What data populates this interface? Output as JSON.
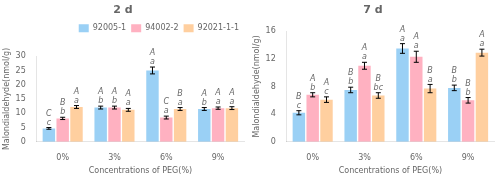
{
  "chart_data": [
    {
      "type": "bar",
      "title": "2 d",
      "xlabel": "Concentrations of PEG(%)",
      "ylabel": "Malondialdehyde(nmol/g)",
      "categories": [
        "0%",
        "3%",
        "6%",
        "9%"
      ],
      "series": [
        {
          "name": "92005-1",
          "values": [
            4.7,
            12.0,
            25.0,
            11.5
          ],
          "errors": [
            0.3,
            0.5,
            1.2,
            0.5
          ],
          "letters": [
            "C",
            "A",
            "A",
            "A"
          ],
          "letters_lower": [
            "c",
            "b",
            "a",
            "b"
          ]
        },
        {
          "name": "94002-2",
          "values": [
            8.2,
            12.0,
            8.5,
            11.8
          ],
          "errors": [
            0.4,
            0.5,
            0.5,
            0.4
          ],
          "letters": [
            "B",
            "A",
            "C",
            "A"
          ],
          "letters_lower": [
            "b",
            "b",
            "a",
            "a"
          ]
        },
        {
          "name": "92021-1-1",
          "values": [
            12.2,
            11.2,
            11.5,
            11.8
          ],
          "errors": [
            0.5,
            0.5,
            0.5,
            0.5
          ],
          "letters": [
            "A",
            "A",
            "B",
            "A"
          ],
          "letters_lower": [
            "a",
            "a",
            "a",
            "a"
          ]
        }
      ],
      "ylim": [
        0,
        30
      ],
      "yticks": [
        0,
        5,
        10,
        15,
        20,
        25,
        30
      ],
      "grid": false,
      "legend": "upper right"
    },
    {
      "type": "bar",
      "title": "7 d",
      "xlabel": "Concentrations of PEG(%)",
      "ylabel": "Malondialdehyde(nmol/g)",
      "categories": [
        "0%",
        "3%",
        "6%",
        "9%"
      ],
      "series": [
        {
          "name": "92005-1",
          "values": [
            4.2,
            7.5,
            13.5,
            7.8
          ],
          "errors": [
            0.3,
            0.4,
            0.7,
            0.4
          ],
          "letters": [
            "B",
            "B",
            "A",
            "B"
          ],
          "letters_lower": [
            "c",
            "b",
            "a",
            "b"
          ]
        },
        {
          "name": "94002-2",
          "values": [
            6.8,
            11.0,
            12.3,
            6.0
          ],
          "errors": [
            0.3,
            0.5,
            0.8,
            0.4
          ],
          "letters": [
            "A",
            "A",
            "A",
            "B"
          ],
          "letters_lower": [
            "b",
            "a",
            "a",
            "b"
          ]
        },
        {
          "name": "92021-1-1",
          "values": [
            6.1,
            6.7,
            7.7,
            12.9
          ],
          "errors": [
            0.4,
            0.4,
            0.6,
            0.5
          ],
          "letters": [
            "A",
            "B",
            "B",
            "A"
          ],
          "letters_lower": [
            "c",
            "bc",
            "a",
            "a"
          ]
        }
      ],
      "ylim": [
        0,
        16
      ],
      "yticks": [
        0,
        4,
        8,
        12,
        16
      ],
      "grid": false
    }
  ]
}
